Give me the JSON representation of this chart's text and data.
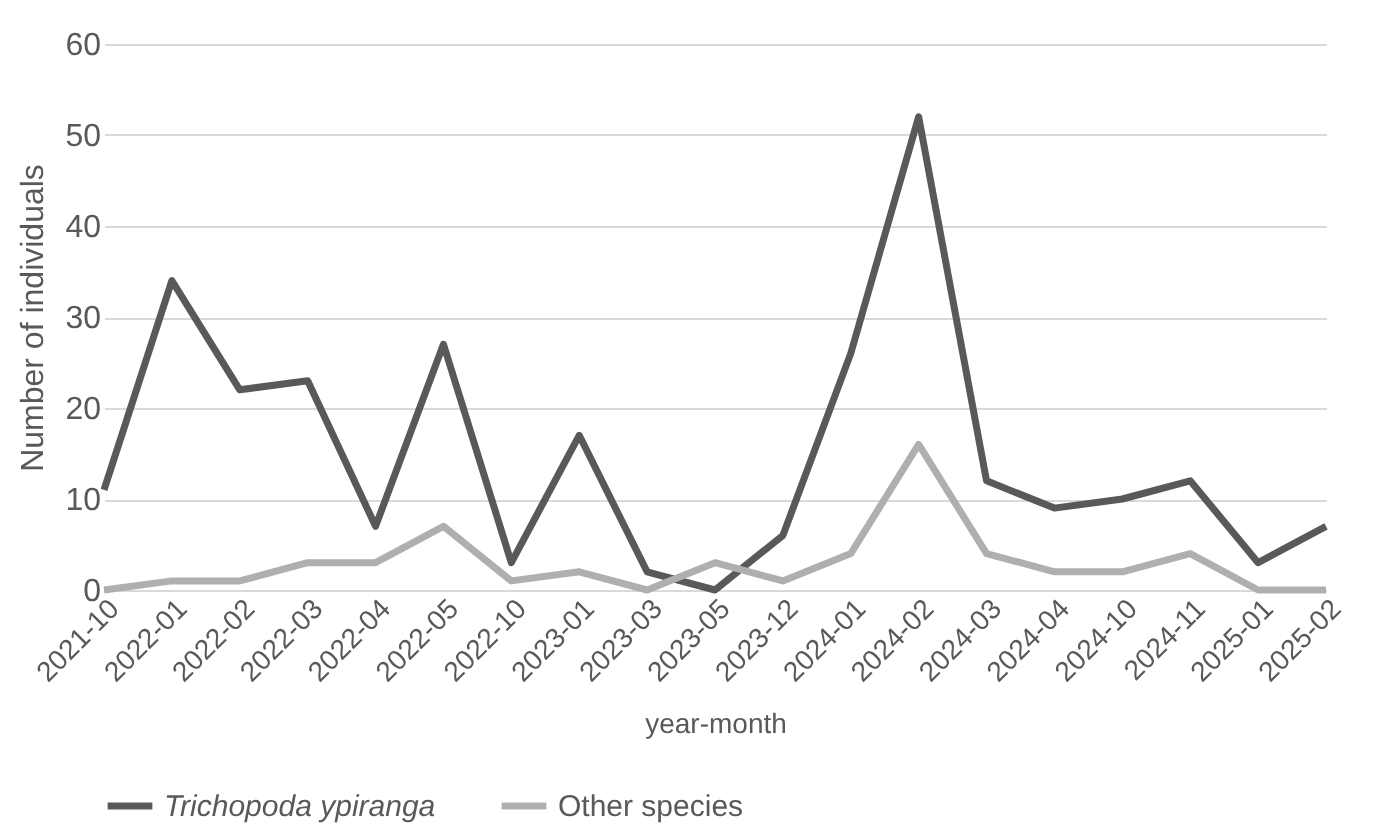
{
  "chart_data": {
    "type": "line",
    "xlabel": "year-month",
    "ylabel": "Number of individuals",
    "categories": [
      "2021-10",
      "2022-01",
      "2022-02",
      "2022-03",
      "2022-04",
      "2022-05",
      "2022-10",
      "2023-01",
      "2023-03",
      "2023-05",
      "2023-12",
      "2024-01",
      "2024-02",
      "2024-03",
      "2024-04",
      "2024-10",
      "2024-11",
      "2025-01",
      "2025-02"
    ],
    "series": [
      {
        "name": "Trichopoda ypiranga",
        "color": "#595959",
        "values": [
          11,
          34,
          22,
          23,
          7,
          27,
          3,
          17,
          2,
          0,
          6,
          26,
          52,
          12,
          9,
          10,
          12,
          3,
          7
        ]
      },
      {
        "name": "Other species",
        "color": "#afafaf",
        "values": [
          0,
          1,
          1,
          3,
          3,
          7,
          1,
          2,
          0,
          3,
          1,
          4,
          16,
          4,
          2,
          2,
          4,
          0,
          0
        ]
      }
    ],
    "ylim": [
      0,
      60
    ],
    "yticks": [
      0,
      10,
      20,
      30,
      40,
      50,
      60
    ],
    "grid": "y",
    "legend": "bottom",
    "marker": "none",
    "line_style": "solid"
  }
}
